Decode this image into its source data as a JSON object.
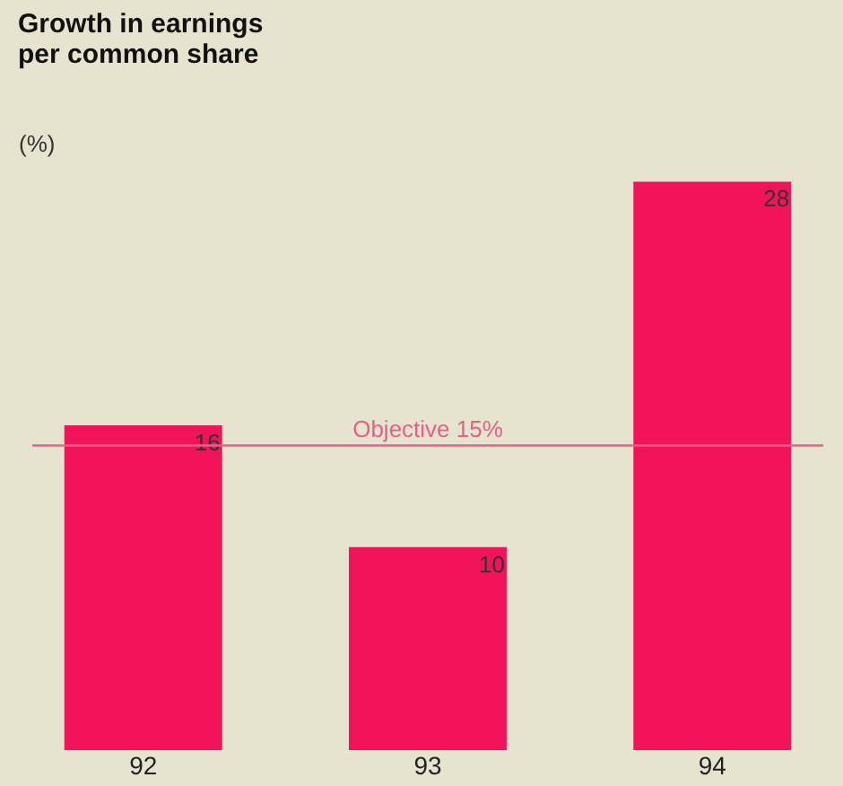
{
  "chart_data": {
    "type": "bar",
    "title": "Growth in earnings per common share",
    "ylabel": "(%)",
    "categories": [
      "92",
      "93",
      "94"
    ],
    "values": [
      16,
      10,
      28
    ],
    "color": "#f2145a",
    "ref_lines": [
      {
        "axis": "y",
        "value": 15,
        "label": "Objective 15%",
        "color": "#e8608a"
      }
    ],
    "data_labels": true,
    "grid": false,
    "tick_labels": "x"
  }
}
